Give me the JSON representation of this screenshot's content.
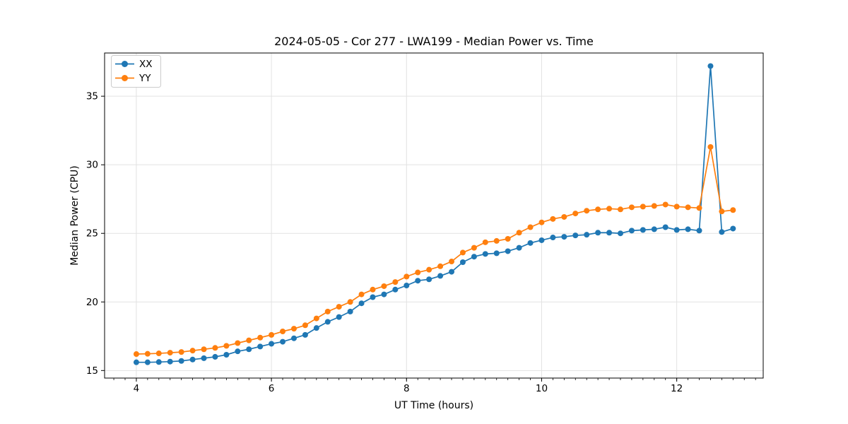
{
  "page": {
    "background": "#ffffff"
  },
  "colors": {
    "grid": "#e2e2e2",
    "spine": "#000000",
    "tick": "#000000",
    "text": "#000000",
    "legend_border": "#cccccc",
    "legend_background": "#ffffff",
    "series_xx": "#1f77b4",
    "series_yy": "#ff7f0e"
  },
  "chart_data": {
    "type": "line",
    "title": "2024-05-05 - Cor 277 - LWA199 - Median Power vs. Time",
    "xlabel": "UT Time (hours)",
    "ylabel": "Median Power (CPU)",
    "xlim": [
      3.53,
      13.28
    ],
    "ylim": [
      14.45,
      38.15
    ],
    "xticks": [
      4,
      6,
      8,
      10,
      12
    ],
    "yticks": [
      15,
      20,
      25,
      30,
      35
    ],
    "x_minor_step": 0.166667,
    "grid": true,
    "legend_position": "upper-left",
    "marker": "circle",
    "x": [
      4.0,
      4.1667,
      4.3333,
      4.5,
      4.6667,
      4.8333,
      5.0,
      5.1667,
      5.3333,
      5.5,
      5.6667,
      5.8333,
      6.0,
      6.1667,
      6.3333,
      6.5,
      6.6667,
      6.8333,
      7.0,
      7.1667,
      7.3333,
      7.5,
      7.6667,
      7.8333,
      8.0,
      8.1667,
      8.3333,
      8.5,
      8.6667,
      8.8333,
      9.0,
      9.1667,
      9.3333,
      9.5,
      9.6667,
      9.8333,
      10.0,
      10.1667,
      10.3333,
      10.5,
      10.6667,
      10.8333,
      11.0,
      11.1667,
      11.3333,
      11.5,
      11.6667,
      11.8333,
      12.0,
      12.1667,
      12.3333,
      12.5,
      12.6667,
      12.8333
    ],
    "series": [
      {
        "name": "XX",
        "color": "#1f77b4",
        "values": [
          15.6,
          15.6,
          15.62,
          15.65,
          15.7,
          15.8,
          15.9,
          16.0,
          16.15,
          16.4,
          16.55,
          16.75,
          16.95,
          17.1,
          17.35,
          17.6,
          18.1,
          18.55,
          18.9,
          19.3,
          19.9,
          20.35,
          20.55,
          20.9,
          21.2,
          21.55,
          21.65,
          21.9,
          22.2,
          22.9,
          23.3,
          23.5,
          23.55,
          23.7,
          23.95,
          24.3,
          24.5,
          24.7,
          24.75,
          24.85,
          24.9,
          25.05,
          25.05,
          25.0,
          25.2,
          25.25,
          25.3,
          25.45,
          25.25,
          25.3,
          25.2,
          37.2,
          25.1,
          25.35
        ]
      },
      {
        "name": "YY",
        "color": "#ff7f0e",
        "values": [
          16.2,
          16.22,
          16.25,
          16.3,
          16.35,
          16.45,
          16.55,
          16.65,
          16.8,
          17.0,
          17.2,
          17.4,
          17.6,
          17.85,
          18.05,
          18.3,
          18.8,
          19.3,
          19.65,
          20.0,
          20.55,
          20.9,
          21.15,
          21.45,
          21.85,
          22.15,
          22.35,
          22.6,
          22.95,
          23.6,
          23.95,
          24.35,
          24.45,
          24.6,
          25.05,
          25.45,
          25.8,
          26.05,
          26.2,
          26.45,
          26.65,
          26.75,
          26.8,
          26.75,
          26.9,
          26.95,
          27.0,
          27.1,
          26.95,
          26.9,
          26.85,
          31.3,
          26.6,
          26.7
        ]
      }
    ]
  }
}
